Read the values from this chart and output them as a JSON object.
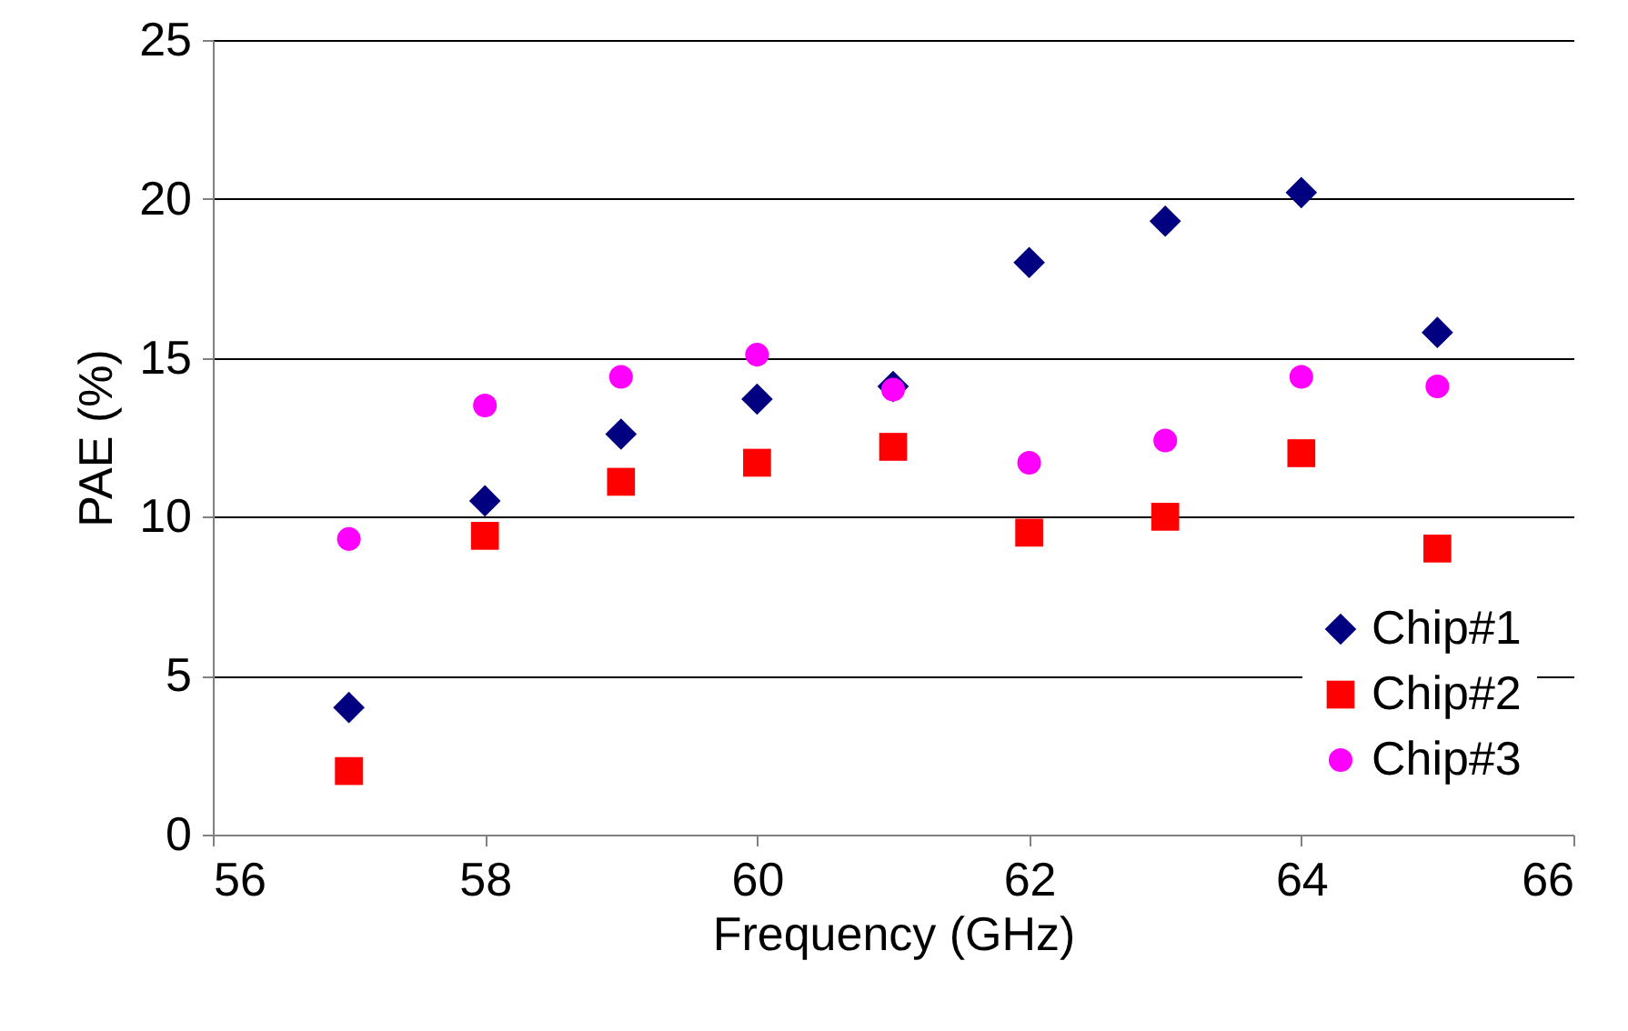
{
  "chart_data": {
    "type": "scatter",
    "xlabel": "Frequency (GHz)",
    "ylabel": "PAE (%)",
    "x": [
      57,
      58,
      59,
      60,
      61,
      62,
      63,
      64,
      65
    ],
    "series": [
      {
        "name": "Chip#1",
        "color": "#000080",
        "marker": "diamond",
        "values": [
          4.0,
          10.5,
          12.6,
          13.7,
          14.1,
          18.0,
          19.3,
          20.2,
          15.8
        ]
      },
      {
        "name": "Chip#2",
        "color": "#ff0000",
        "marker": "square",
        "values": [
          2.0,
          9.4,
          11.1,
          11.7,
          12.2,
          9.5,
          10.0,
          12.0,
          9.0
        ]
      },
      {
        "name": "Chip#3",
        "color": "#ff00ff",
        "marker": "circle",
        "values": [
          9.3,
          13.5,
          14.4,
          15.1,
          14.0,
          11.7,
          12.4,
          14.4,
          14.1
        ]
      }
    ],
    "xlim": [
      56,
      66
    ],
    "xticks": [
      56,
      58,
      60,
      62,
      64,
      66
    ],
    "ylim": [
      0,
      25
    ],
    "yticks": [
      0,
      5,
      10,
      15,
      20,
      25
    ],
    "grid": "y",
    "legend": "bottom right"
  }
}
